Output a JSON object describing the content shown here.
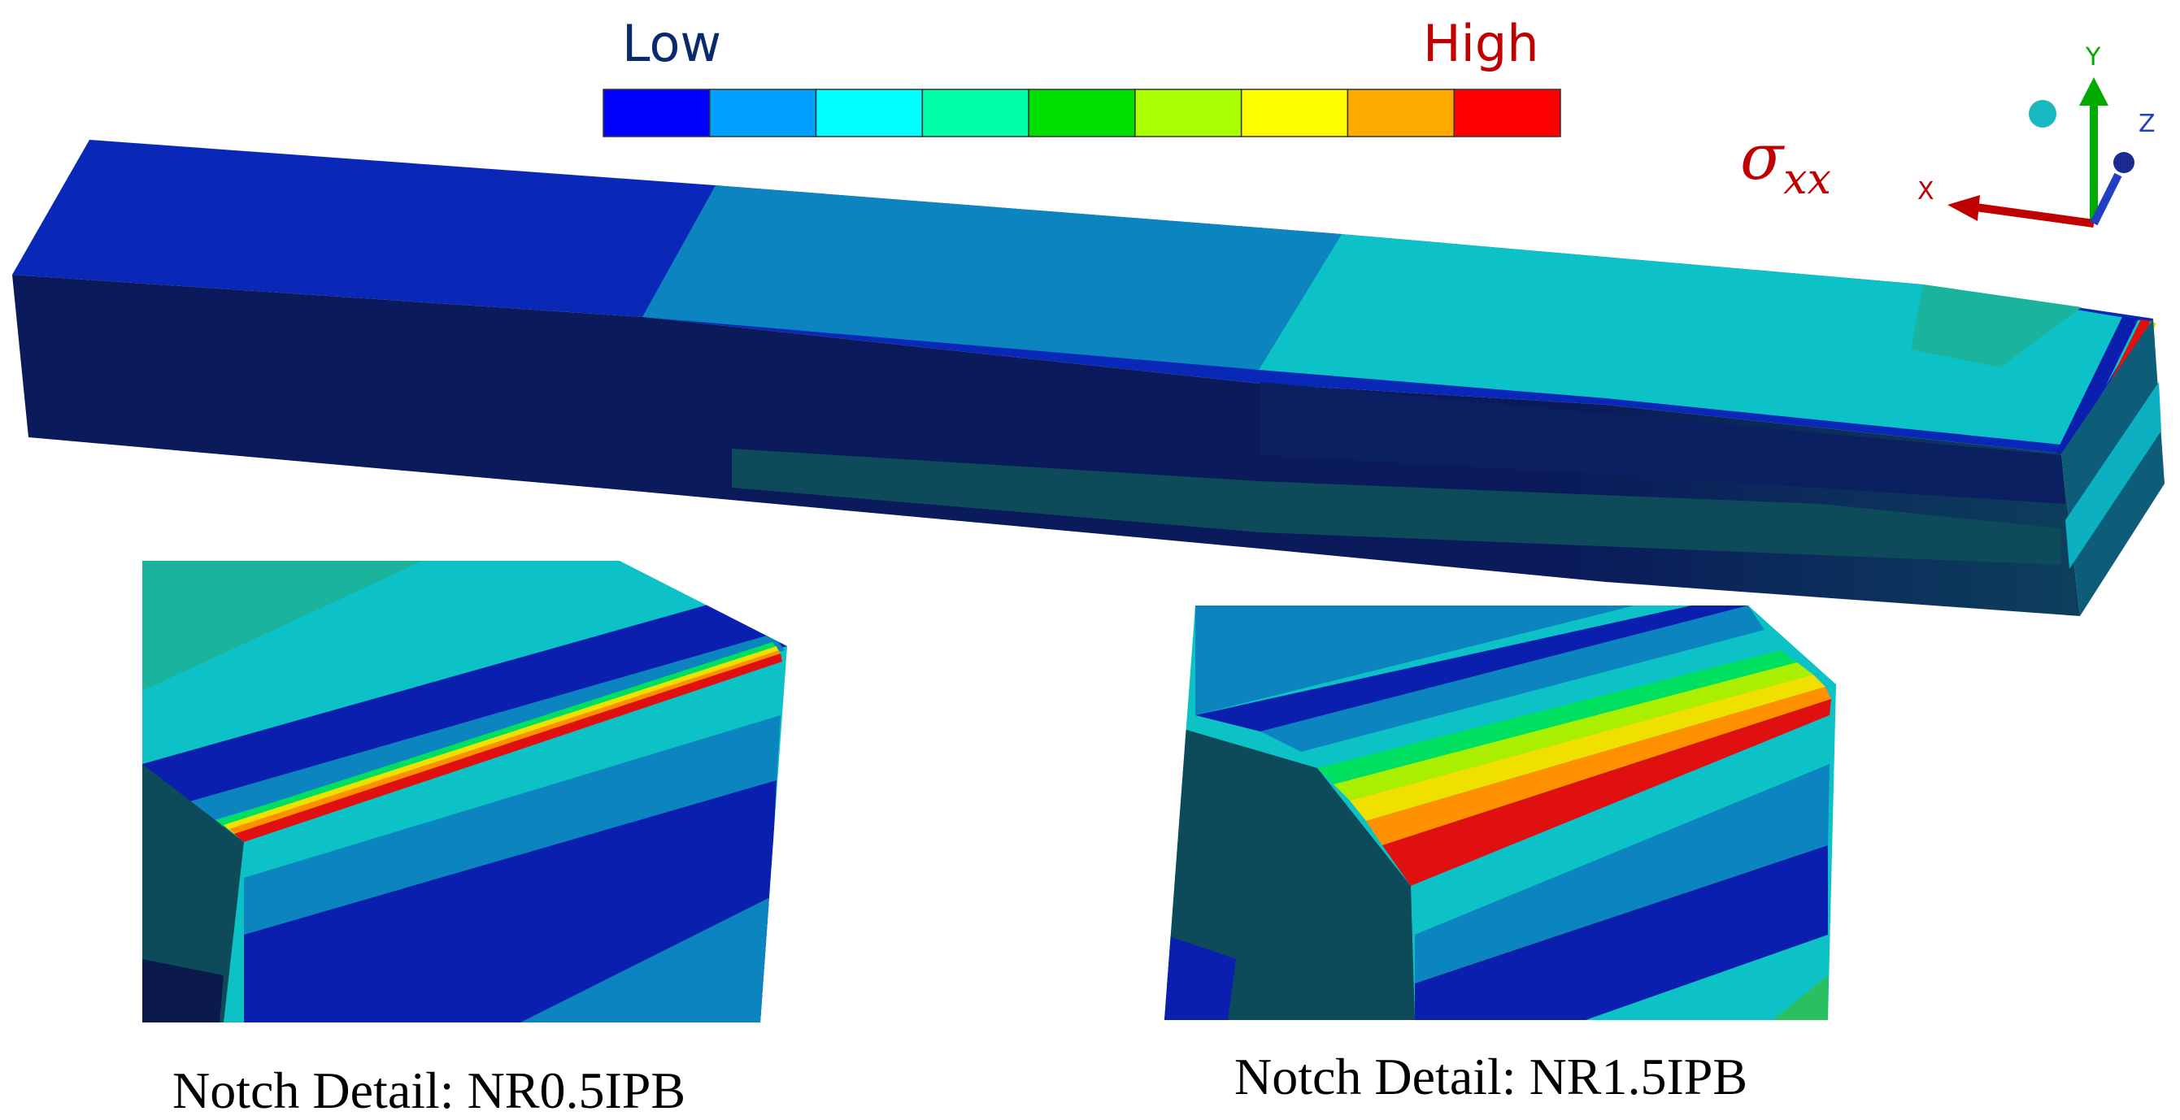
{
  "legend": {
    "low_label": "Low",
    "high_label": "High",
    "low_color": "#0a2a6e",
    "high_color": "#c00000",
    "bins": [
      "#0000ff",
      "#00a0ff",
      "#00ffff",
      "#00ffaa",
      "#00e000",
      "#aaff00",
      "#ffff00",
      "#ffaa00",
      "#ff0000"
    ]
  },
  "stress_symbol": "σ",
  "stress_subscript": "xx",
  "axes": {
    "x": {
      "label": "X",
      "color": "#c00000"
    },
    "y": {
      "label": "Y",
      "color": "#00aa00"
    },
    "z": {
      "label": "Z",
      "color": "#2040c0"
    }
  },
  "captions": {
    "left": "Notch Detail: NR0.5IPB",
    "right": "Notch Detail: NR1.5IPB"
  },
  "contour_colors": {
    "dark_navy": "#0b1a4a",
    "deep_blue": "#0a1fae",
    "mid_blue": "#0b7fc0",
    "cyan": "#0cc0c8",
    "teal": "#1ab0a0",
    "green": "#28c060",
    "dark_teal": "#0d4a5a"
  }
}
